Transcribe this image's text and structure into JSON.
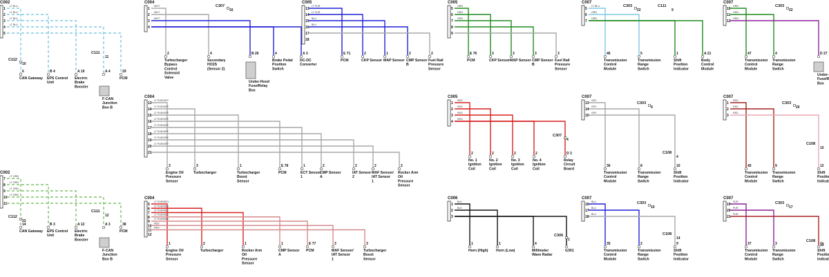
{
  "colors": {
    "ltblu": "#7ec8e3",
    "ltgrn_dash": "#7fbf6a",
    "gray": "#a7a7a7",
    "blue": "#1f1fd6",
    "green": "#1f8a1f",
    "purple": "#8a1f9a",
    "red": "#d81f1f",
    "pink": "#e8a9b4",
    "dkred": "#a61f1f",
    "lightred": "#d58a8a",
    "black": "#111111",
    "wire_text": "#333333",
    "block": "#cfcfcf"
  },
  "circuits": [
    {
      "connector": "C002",
      "pins": [
        "1",
        "2",
        "3",
        "4",
        "5"
      ],
      "wire_labels": [
        "LT BLU",
        "LT BLU",
        "LT BLU",
        "LT BLU"
      ],
      "junction": "C112",
      "junction_pin": "10",
      "extra": "C111",
      "extra_pin": "11",
      "endpoints": [
        {
          "pin": "6",
          "name": "CAN Gateway"
        },
        {
          "pin": "B  4",
          "name": "EPS Control Unit"
        },
        {
          "pin": "A  19",
          "name": "Electric Brake Booster"
        },
        {
          "pin": "A  4",
          "name": "F-CAN Junction Box B"
        },
        {
          "pin": "29",
          "name": "PCM"
        }
      ]
    },
    {
      "connector": "C004",
      "pins": [
        "1",
        "2",
        "3",
        "4"
      ],
      "wire_labels": [
        "WHT",
        "WHT",
        "WHT"
      ],
      "junction": "C307",
      "junction_pin": "16",
      "endpoints": [
        {
          "pin": "2",
          "name": "Turbocharger Bypass Control Solenoid Valve"
        },
        {
          "pin": "4",
          "name": "Secondary HO2S (Sensor 2)"
        },
        {
          "pin": "B  26",
          "name": "Under-Hood Fuse/Relay Box"
        },
        {
          "pin": "4",
          "name": "Brake Pedal Position Switch"
        },
        {
          "pin": "A  3",
          "name": "DC-DC Converter"
        }
      ]
    },
    {
      "connector": "C005",
      "pins": [
        "13",
        "14",
        "15",
        "16",
        "17",
        "18"
      ],
      "wire_labels": [
        "LT PUR",
        "LT PUR",
        "BLU",
        "BLU"
      ],
      "endpoints": [
        {
          "pin": "E  71",
          "name": "PCM"
        },
        {
          "pin": "2",
          "name": "CKP Sensor"
        },
        {
          "pin": "1",
          "name": "MAP Sensor"
        },
        {
          "pin": "2",
          "name": "CMP Sensor B"
        },
        {
          "pin": "2",
          "name": "Fuel Rail Pressure Sensor"
        }
      ]
    },
    {
      "connector": "C005",
      "pins": [
        "5",
        "6",
        "7",
        "8",
        "9"
      ],
      "wire_labels": [
        "GRN",
        "GRN",
        "GRN"
      ],
      "endpoints": [
        {
          "pin": "E  76",
          "name": "PCM"
        },
        {
          "pin": "3",
          "name": "CKP Sensor"
        },
        {
          "pin": "3",
          "name": "MAP Sensor"
        },
        {
          "pin": "3",
          "name": "CMP Sensor B"
        },
        {
          "pin": "3",
          "name": "Fuel Rail Pressure Sensor"
        }
      ]
    },
    {
      "connector": "C007",
      "pins": [
        "5",
        "6",
        "7"
      ],
      "wire_labels": [
        "LT BLU",
        "GRN",
        "GRN"
      ],
      "junction": "C303",
      "junction_pin": "22",
      "extra": "C111",
      "extra_pin": "9",
      "endpoints": [
        {
          "pin": "46",
          "name": "Transmission Control Module"
        },
        {
          "pin": "5",
          "name": "Transmission Range Switch"
        },
        {
          "pin": "1",
          "name": "Shift Position Indicator"
        },
        {
          "pin": "A  21",
          "name": "Body Control Module"
        }
      ]
    },
    {
      "connector": "C007",
      "pins": [
        "10",
        "11",
        "12"
      ],
      "wire_labels": [
        "GRN",
        "GRN",
        "GRN"
      ],
      "junction": "C303",
      "junction_pin": "22",
      "endpoints": [
        {
          "pin": "47",
          "name": "Transmission Control Module"
        },
        {
          "pin": "4",
          "name": "Transmission Range Switch"
        },
        {
          "pin": "D  27",
          "name": "Under-Dash Fuse/Relay Box"
        }
      ]
    },
    {
      "connector": "C004",
      "pins": [
        "13",
        "14",
        "15",
        "16",
        "17",
        "18",
        "19",
        "20",
        "21"
      ],
      "wire_labels": [
        "LT PUR/GRY",
        "LT PUR/GRY",
        "LT PUR/GRY",
        "LT PUR/GRY",
        "LT PUR/GRY",
        "LT PUR/GRY",
        "LT PUR/GRY",
        "LT PUR/GRY"
      ],
      "endpoints": [
        {
          "pin": "3",
          "name": "Engine Oil Pressure Sensor"
        },
        {
          "pin": "3",
          "name": "Turbocharger"
        },
        {
          "pin": "1",
          "name": "Turbocharger Boost Sensor"
        },
        {
          "pin": "E  78",
          "name": "PCM"
        },
        {
          "pin": "1",
          "name": "ECT Sensor 1"
        },
        {
          "pin": "2",
          "name": "CMP Sensor A"
        },
        {
          "pin": "2",
          "name": "IAT Sensor 2"
        },
        {
          "pin": "2",
          "name": "MAF Sensor/ IAT Sensor 1"
        },
        {
          "pin": "2",
          "name": "Rocker Arm Oil Pressure Sensor"
        }
      ]
    },
    {
      "connector": "C005",
      "pins": [
        "1",
        "2",
        "3",
        "4"
      ],
      "wire_labels": [
        "RED",
        "RED",
        "RED",
        "RED"
      ],
      "junction": "C307",
      "junction_pin": "4",
      "endpoints": [
        {
          "pin": "2",
          "name": "No. 1 Ignition Coil"
        },
        {
          "pin": "2",
          "name": "No. 2 Ignition Coil"
        },
        {
          "pin": "2",
          "name": "No. 3 Ignition Coil"
        },
        {
          "pin": "2",
          "name": "No. 4 Ignition Coil"
        },
        {
          "pin": "D  3",
          "name": "Relay Circuit Board"
        }
      ]
    },
    {
      "connector": "C007",
      "pins": [
        "13",
        "14",
        "15"
      ],
      "wire_labels": [
        "GRY",
        "GRY",
        "GRY"
      ],
      "junction": "C303",
      "junction_pin": "9",
      "extra": "C108",
      "extra_pin": "4",
      "endpoints": [
        {
          "pin": "36",
          "name": "Transmission Control Module"
        },
        {
          "pin": "8",
          "name": "Transmission Range Switch"
        },
        {
          "pin": "10",
          "name": "Shift Position Indicator"
        }
      ]
    },
    {
      "connector": "C007",
      "pins": [
        "1",
        "2",
        "3"
      ],
      "wire_labels": [
        "RED",
        "RED",
        "RED"
      ],
      "junction": "C303",
      "junction_pin": "20",
      "extra": "C108",
      "extra_pin": "15",
      "endpoints": [
        {
          "pin": "45",
          "name": "Transmission Control Module"
        },
        {
          "pin": "9",
          "name": "Transmission Range Switch"
        },
        {
          "pin": "12",
          "name": "Shift Position Indicator"
        }
      ]
    },
    {
      "connector": "C002",
      "pins": [
        "7",
        "8",
        "9",
        "10",
        "11"
      ],
      "wire_labels": [
        "LT GRN",
        "LT GRN",
        "LT GRN",
        "LT GRN"
      ],
      "junction": "C112",
      "junction_pin": "22",
      "extra": "C111",
      "extra_pin": "12",
      "endpoints": [
        {
          "pin": "14",
          "name": "CAN Gateway"
        },
        {
          "pin": "B  3",
          "name": "EPS Control Unit"
        },
        {
          "pin": "A  12",
          "name": "Electric Brake Booster"
        },
        {
          "pin": "A  3",
          "name": "F-CAN Junction Box B"
        },
        {
          "pin": "38",
          "name": "PCM"
        }
      ]
    },
    {
      "connector": "C004",
      "pins": [
        "5",
        "6",
        "7",
        "8",
        "9",
        "10",
        "11",
        "12"
      ],
      "wire_labels": [
        "LT PUR/RED",
        "LT PUR/RED",
        "LT PUR/RED",
        "LT PUR/RED",
        "LT PUR/RED",
        "RED",
        "RED"
      ],
      "endpoints": [
        {
          "pin": "1",
          "name": "Engine Oil Pressure Sensor"
        },
        {
          "pin": "2",
          "name": "Turbocharger"
        },
        {
          "pin": "1",
          "name": "Rocker Arm Oil Pressure Sensor"
        },
        {
          "pin": "1",
          "name": "CMP Sensor A"
        },
        {
          "pin": "E  77",
          "name": "PCM"
        },
        {
          "pin": "3",
          "name": "MAF Sensor/ IAT Sensor 1"
        },
        {
          "pin": "3",
          "name": "Turbocharger Boost Sensor"
        }
      ]
    },
    {
      "connector": "C006",
      "pins": [
        "1",
        "2",
        "3"
      ],
      "wire_labels": [
        "BLK",
        "BLK"
      ],
      "junction": "C306",
      "junction_pin": "1",
      "endpoints": [
        {
          "pin": "1",
          "name": "Horn (High)"
        },
        {
          "pin": "1",
          "name": "Horn (Low)"
        },
        {
          "pin": "4",
          "name": "Millimeter Wave Radar"
        },
        {
          "pin": "",
          "name": "G301"
        }
      ]
    },
    {
      "connector": "C007",
      "pins": [
        "16",
        "17",
        "18"
      ],
      "wire_labels": [
        "BLU",
        "BLU",
        "BLU"
      ],
      "junction": "C303",
      "junction_pin": "10",
      "extra": "C108",
      "extra_pin": "14",
      "endpoints": [
        {
          "pin": "35",
          "name": "Transmission Control Module"
        },
        {
          "pin": "2",
          "name": "Transmission Range Switch"
        },
        {
          "pin": "9",
          "name": "Shift Position Indicator"
        }
      ]
    },
    {
      "connector": "C007",
      "pins": [
        "19",
        "20",
        "21"
      ],
      "wire_labels": [
        "PUR",
        "PUR",
        "PUR"
      ],
      "junction": "C303",
      "junction_pin": "17",
      "extra": "C108",
      "extra_pin": "13",
      "endpoints": [
        {
          "pin": "37",
          "name": "Transmission Control Module"
        },
        {
          "pin": "3",
          "name": "Transmission Range Switch"
        },
        {
          "pin": "11",
          "name": "Shift Position Indicator"
        }
      ]
    }
  ]
}
